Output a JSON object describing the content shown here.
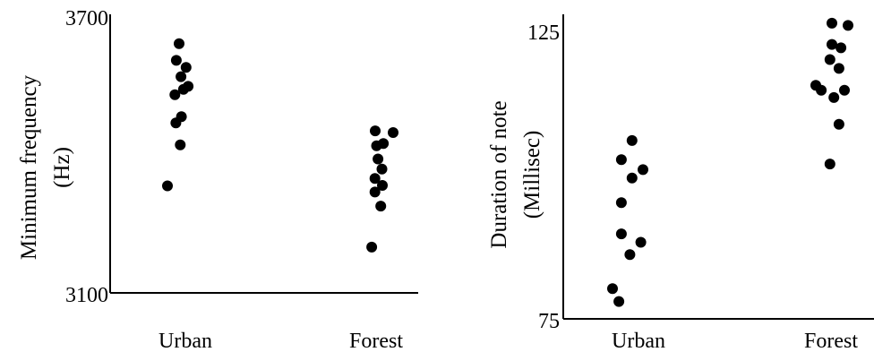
{
  "chart_data": [
    {
      "type": "scatter",
      "title": "",
      "xlabel": "",
      "ylabel": [
        "Minimum frequency",
        "(Hz)"
      ],
      "categories": [
        "Urban",
        "Forest"
      ],
      "ylim": [
        3100,
        3700
      ],
      "yticks": [
        "3700",
        "3100"
      ],
      "grid": false,
      "series": [
        {
          "category": "Urban",
          "points": [
            {
              "jitter": 0.5,
              "y": 3666
            },
            {
              "jitter": 0.38,
              "y": 3628
            },
            {
              "jitter": 0.8,
              "y": 3612
            },
            {
              "jitter": 0.58,
              "y": 3591
            },
            {
              "jitter": 0.89,
              "y": 3569
            },
            {
              "jitter": 0.69,
              "y": 3562
            },
            {
              "jitter": 0.32,
              "y": 3550
            },
            {
              "jitter": 0.6,
              "y": 3500
            },
            {
              "jitter": 0.36,
              "y": 3486
            },
            {
              "jitter": 0.55,
              "y": 3436
            },
            {
              "jitter": 0.0,
              "y": 3343
            }
          ]
        },
        {
          "category": "Forest",
          "points": [
            {
              "jitter": 0.23,
              "y": 3468
            },
            {
              "jitter": 1.0,
              "y": 3464
            },
            {
              "jitter": 0.58,
              "y": 3439
            },
            {
              "jitter": 0.29,
              "y": 3434
            },
            {
              "jitter": 0.35,
              "y": 3404
            },
            {
              "jitter": 0.52,
              "y": 3381
            },
            {
              "jitter": 0.22,
              "y": 3360
            },
            {
              "jitter": 0.54,
              "y": 3344
            },
            {
              "jitter": 0.22,
              "y": 3329
            },
            {
              "jitter": 0.47,
              "y": 3297
            },
            {
              "jitter": 0.08,
              "y": 3204
            }
          ]
        }
      ]
    },
    {
      "type": "scatter",
      "title": "",
      "xlabel": "",
      "ylabel": [
        "Duration of note",
        "(Millisec)"
      ],
      "categories": [
        "Urban",
        "Forest"
      ],
      "ylim": [
        75,
        125
      ],
      "yticks": [
        "125",
        "75"
      ],
      "grid": false,
      "series": [
        {
          "category": "Urban",
          "points": [
            {
              "jitter": 0.64,
              "y": 106.1
            },
            {
              "jitter": 0.29,
              "y": 102.7
            },
            {
              "jitter": 1.0,
              "y": 100.9
            },
            {
              "jitter": 0.64,
              "y": 99.4
            },
            {
              "jitter": 0.29,
              "y": 95.0
            },
            {
              "jitter": 0.29,
              "y": 89.4
            },
            {
              "jitter": 0.93,
              "y": 87.9
            },
            {
              "jitter": 0.57,
              "y": 85.7
            },
            {
              "jitter": 0.0,
              "y": 79.6
            },
            {
              "jitter": 0.21,
              "y": 77.3
            }
          ]
        },
        {
          "category": "Forest",
          "points": [
            {
              "jitter": 0.5,
              "y": 127.1
            },
            {
              "jitter": 1.0,
              "y": 126.7
            },
            {
              "jitter": 0.5,
              "y": 123.3
            },
            {
              "jitter": 0.78,
              "y": 122.7
            },
            {
              "jitter": 0.44,
              "y": 120.6
            },
            {
              "jitter": 0.72,
              "y": 119.0
            },
            {
              "jitter": 0.0,
              "y": 116.0
            },
            {
              "jitter": 0.89,
              "y": 115.1
            },
            {
              "jitter": 0.17,
              "y": 115.1
            },
            {
              "jitter": 0.56,
              "y": 113.8
            },
            {
              "jitter": 0.72,
              "y": 109.0
            },
            {
              "jitter": 0.44,
              "y": 101.9
            }
          ]
        }
      ]
    }
  ]
}
